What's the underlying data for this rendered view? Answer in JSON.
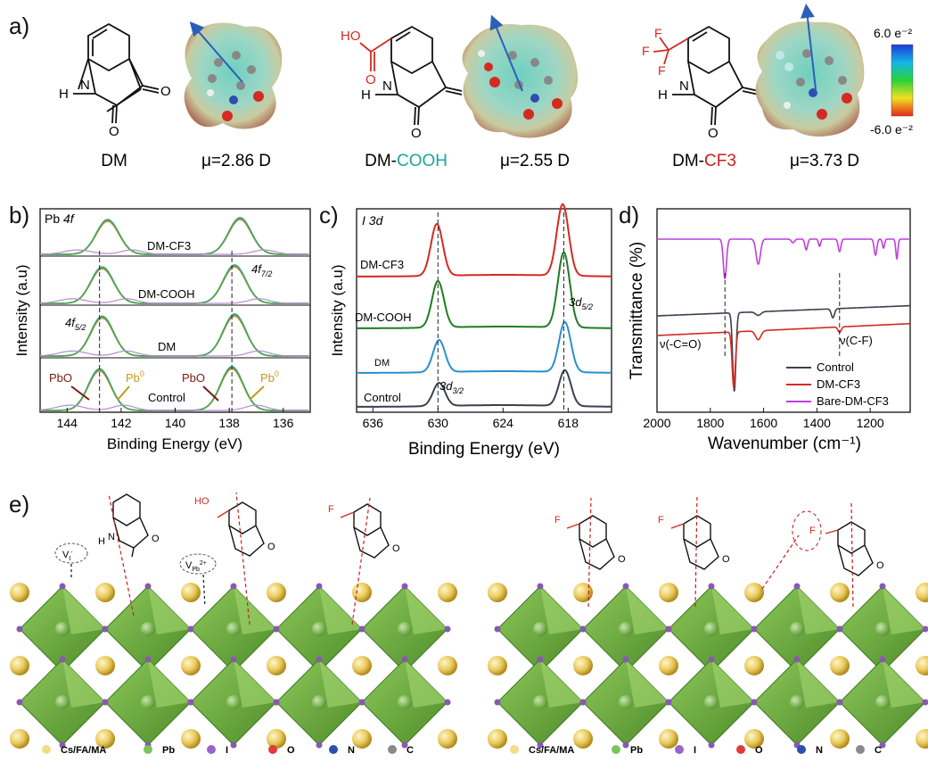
{
  "panel_labels": {
    "a": "a)",
    "b": "b)",
    "c": "c)",
    "d": "d)",
    "e": "e)"
  },
  "molecules": [
    {
      "name": "DM",
      "dipole": "μ=2.86 D"
    },
    {
      "name_prefix": "DM-",
      "name_suffix": "COOH",
      "dipole": "μ=2.55 D"
    },
    {
      "name_prefix": "DM-",
      "name_suffix": "CF3",
      "dipole": "μ=3.73 D"
    }
  ],
  "atoms": {
    "h": "H",
    "n": "N",
    "o": "O",
    "ho": "HO",
    "f": "F"
  },
  "colorbar": {
    "max": "6.0 e⁻²",
    "min": "-6.0 e⁻²"
  },
  "colors": {
    "red": "#d42a22",
    "teal": "#1aa5a0",
    "green_oct": "#6fae3a",
    "gold": "#e3c35a",
    "purple": "#8a58b4"
  },
  "chart_data": [
    {
      "panel": "b",
      "type": "line",
      "title": "Pb 4f",
      "title_prefix": "Pb ",
      "title_italic": "4f",
      "xlabel": "Binding Energy (eV)",
      "ylabel": "Intensity (a.u)",
      "xlim": [
        145,
        135
      ],
      "xticks": [
        "144",
        "142",
        "140",
        "138",
        "136"
      ],
      "series": [
        {
          "name": "DM-CF3",
          "peaks_eV": [
            142.5,
            137.6
          ]
        },
        {
          "name": "DM-COOH",
          "peaks_eV": [
            142.7,
            137.8
          ]
        },
        {
          "name": "DM",
          "peaks_eV": [
            142.7,
            137.8
          ]
        },
        {
          "name": "Control",
          "peaks_eV": [
            142.8,
            137.9
          ]
        }
      ],
      "annotations": {
        "f72_main": "4f",
        "f72_sub": "7/2",
        "f52_main": "4f",
        "f52_sub": "5/2",
        "pbo": "PbO",
        "pb0_main": "Pb",
        "pb0_sup": "0"
      },
      "reference_lines_eV": [
        142.8,
        137.9
      ]
    },
    {
      "panel": "c",
      "type": "line",
      "title": "I 3d",
      "xlabel": "Binding Energy (eV)",
      "ylabel": "Intensity (a.u)",
      "xlim": [
        637.5,
        614
      ],
      "xticks": [
        "636",
        "630",
        "624",
        "618"
      ],
      "series": [
        {
          "name": "DM-CF3",
          "peaks_eV": [
            630.1,
            618.5
          ],
          "color": "#d42a22"
        },
        {
          "name": "DM-COOH",
          "peaks_eV": [
            630.0,
            618.4
          ],
          "color": "#1e7d22"
        },
        {
          "name": "DM",
          "peaks_eV": [
            629.9,
            618.3
          ],
          "color": "#2a8fd0"
        },
        {
          "name": "Control",
          "peaks_eV": [
            629.9,
            618.3
          ],
          "color": "#3a4250"
        }
      ],
      "annotations": {
        "d52_main": "3d",
        "d52_sub": "5/2",
        "d32_main": "3d",
        "d32_sub": "3/2"
      },
      "reference_lines_eV": [
        630.0,
        618.4
      ]
    },
    {
      "panel": "d",
      "type": "line",
      "xlabel": "Wavenumber (cm⁻¹)",
      "ylabel": "Transmittance (%)",
      "xlim": [
        2000,
        1050
      ],
      "xticks": [
        "2000",
        "1800",
        "1600",
        "1400",
        "1200"
      ],
      "series": [
        {
          "name": "Control",
          "color": "#3a4250",
          "dips_cm": [
            1710,
            1340
          ]
        },
        {
          "name": "DM-CF3",
          "color": "#d42a22",
          "dips_cm": [
            1710,
            1620,
            1315
          ]
        },
        {
          "name": "Bare-DM-CF3",
          "color": "#c13ee0",
          "dips_cm": [
            1745,
            1620,
            1440,
            1315,
            1180,
            1100
          ]
        }
      ],
      "annotations": {
        "co": "ν(-C=O)",
        "cf": "ν(C-F)"
      },
      "reference_lines_cm": [
        1745,
        1315
      ]
    }
  ],
  "legend_e": [
    {
      "label": "Cs/FA/MA",
      "color": "#f2dc86"
    },
    {
      "label": "Pb",
      "color": "#7cc45a"
    },
    {
      "label": "I",
      "color": "#9b64c9"
    },
    {
      "label": "O",
      "color": "#e23b3b"
    },
    {
      "label": "N",
      "color": "#2e4fb0"
    },
    {
      "label": "C",
      "color": "#8a8a8a"
    }
  ],
  "vacancies": {
    "vi_main": "V",
    "vi_sub": "I",
    "vi_sup": "-",
    "vpb_main": "V",
    "vpb_sub": "Pb",
    "vpb_sup": "2+"
  }
}
